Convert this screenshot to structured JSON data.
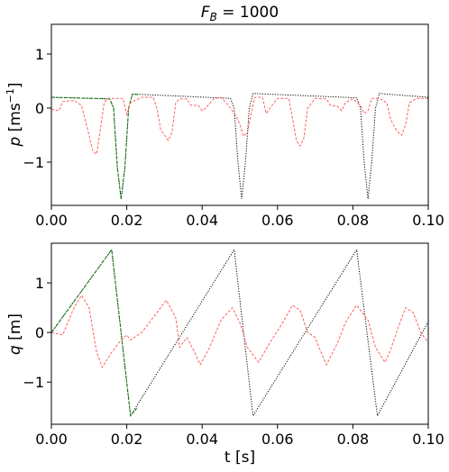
{
  "chart_data": [
    {
      "type": "line",
      "title": "F_B = 1000",
      "title_parts": {
        "main": "F",
        "sub": "B",
        "rest": " = 1000"
      },
      "ylabel_parts": {
        "var": "p",
        "unit_open": " [ms",
        "exp": "−1",
        "unit_close": "]"
      },
      "xlim": [
        0.0,
        0.1
      ],
      "ylim": [
        -1.8,
        1.55
      ],
      "xticks": [
        0.0,
        0.02,
        0.04,
        0.06,
        0.08,
        0.1
      ],
      "xtick_labels": [
        "0.00",
        "0.02",
        "0.04",
        "0.06",
        "0.08",
        "0.10"
      ],
      "yticks": [
        -1,
        0,
        1
      ],
      "ytick_labels": [
        "−1",
        "0",
        "1"
      ],
      "series": [
        {
          "color": "#000000",
          "style": "dotted",
          "points": [
            [
              0,
              0.2
            ],
            [
              0.0155,
              0.17
            ],
            [
              0.0165,
              0.0
            ],
            [
              0.0175,
              -1.1
            ],
            [
              0.0185,
              -1.68
            ],
            [
              0.0195,
              -1.1
            ],
            [
              0.0205,
              0.0
            ],
            [
              0.0215,
              0.26
            ],
            [
              0.0475,
              0.18
            ],
            [
              0.0485,
              0.0
            ],
            [
              0.0495,
              -1.0
            ],
            [
              0.0505,
              -1.68
            ],
            [
              0.0515,
              -1.0
            ],
            [
              0.0525,
              0.0
            ],
            [
              0.0535,
              0.27
            ],
            [
              0.081,
              0.19
            ],
            [
              0.082,
              0.0
            ],
            [
              0.083,
              -1.0
            ],
            [
              0.084,
              -1.68
            ],
            [
              0.085,
              -1.0
            ],
            [
              0.086,
              0.0
            ],
            [
              0.087,
              0.27
            ],
            [
              0.1,
              0.2
            ]
          ]
        },
        {
          "color": "#008000",
          "style": "dashed",
          "points": [
            [
              0,
              0.2
            ],
            [
              0.0155,
              0.17
            ],
            [
              0.0165,
              0.0
            ],
            [
              0.0175,
              -1.1
            ],
            [
              0.0185,
              -1.68
            ],
            [
              0.0195,
              -1.1
            ],
            [
              0.0205,
              0.0
            ],
            [
              0.0215,
              0.26
            ],
            [
              0.023,
              0.25
            ]
          ]
        },
        {
          "color": "#ff6060",
          "style": "dashed",
          "points": [
            [
              0,
              -0.02
            ],
            [
              0.002,
              -0.05
            ],
            [
              0.003,
              0.12
            ],
            [
              0.006,
              0.14
            ],
            [
              0.008,
              0.05
            ],
            [
              0.01,
              -0.5
            ],
            [
              0.011,
              -0.8
            ],
            [
              0.012,
              -0.85
            ],
            [
              0.013,
              -0.4
            ],
            [
              0.014,
              0.1
            ],
            [
              0.015,
              0.18
            ],
            [
              0.019,
              0.18
            ],
            [
              0.02,
              -0.12
            ],
            [
              0.021,
              0.1
            ],
            [
              0.024,
              0.2
            ],
            [
              0.027,
              0.2
            ],
            [
              0.028,
              0.0
            ],
            [
              0.029,
              -0.4
            ],
            [
              0.031,
              -0.6
            ],
            [
              0.032,
              -0.45
            ],
            [
              0.033,
              0.1
            ],
            [
              0.034,
              0.17
            ],
            [
              0.036,
              0.17
            ],
            [
              0.037,
              0.05
            ],
            [
              0.039,
              0.05
            ],
            [
              0.04,
              -0.05
            ],
            [
              0.041,
              0.0
            ],
            [
              0.043,
              0.17
            ],
            [
              0.045,
              0.2
            ],
            [
              0.047,
              0.05
            ],
            [
              0.049,
              -0.15
            ],
            [
              0.05,
              -0.3
            ],
            [
              0.051,
              -0.52
            ],
            [
              0.052,
              -0.45
            ],
            [
              0.053,
              -0.1
            ],
            [
              0.054,
              0.2
            ],
            [
              0.056,
              0.2
            ],
            [
              0.057,
              -0.1
            ],
            [
              0.058,
              0.0
            ],
            [
              0.06,
              0.18
            ],
            [
              0.063,
              0.18
            ],
            [
              0.064,
              -0.2
            ],
            [
              0.065,
              -0.6
            ],
            [
              0.066,
              -0.7
            ],
            [
              0.067,
              -0.55
            ],
            [
              0.068,
              0.0
            ],
            [
              0.07,
              0.18
            ],
            [
              0.073,
              0.17
            ],
            [
              0.074,
              0.05
            ],
            [
              0.076,
              0.03
            ],
            [
              0.077,
              -0.05
            ],
            [
              0.078,
              0.1
            ],
            [
              0.08,
              0.17
            ],
            [
              0.082,
              0.05
            ],
            [
              0.083,
              -0.1
            ],
            [
              0.084,
              -0.05
            ],
            [
              0.085,
              0.18
            ],
            [
              0.087,
              0.18
            ],
            [
              0.089,
              0.1
            ],
            [
              0.09,
              -0.2
            ],
            [
              0.091,
              -0.35
            ],
            [
              0.092,
              -0.45
            ],
            [
              0.093,
              -0.5
            ],
            [
              0.094,
              -0.3
            ],
            [
              0.095,
              0.1
            ],
            [
              0.097,
              0.18
            ],
            [
              0.1,
              0.18
            ]
          ]
        }
      ]
    },
    {
      "type": "line",
      "xlabel": "t [s]",
      "ylabel_parts": {
        "var": "q",
        "unit_open": " [m]",
        "exp": "",
        "unit_close": ""
      },
      "xlim": [
        0.0,
        0.1
      ],
      "ylim": [
        -1.85,
        1.8
      ],
      "xticks": [
        0.0,
        0.02,
        0.04,
        0.06,
        0.08,
        0.1
      ],
      "xtick_labels": [
        "0.00",
        "0.02",
        "0.04",
        "0.06",
        "0.08",
        "0.10"
      ],
      "yticks": [
        -1,
        0,
        1
      ],
      "ytick_labels": [
        "−1",
        "0",
        "1"
      ],
      "series": [
        {
          "color": "#000000",
          "style": "dotted",
          "points": [
            [
              0,
              0.0
            ],
            [
              0.016,
              1.67
            ],
            [
              0.021,
              -1.68
            ],
            [
              0.0485,
              1.67
            ],
            [
              0.0535,
              -1.68
            ],
            [
              0.081,
              1.67
            ],
            [
              0.0865,
              -1.68
            ],
            [
              0.1,
              0.22
            ]
          ]
        },
        {
          "color": "#008000",
          "style": "dashed",
          "points": [
            [
              0,
              0.0
            ],
            [
              0.016,
              1.67
            ],
            [
              0.021,
              -1.68
            ],
            [
              0.023,
              -1.5
            ]
          ]
        },
        {
          "color": "#ff6060",
          "style": "dashed",
          "points": [
            [
              0,
              0.0
            ],
            [
              0.003,
              -0.05
            ],
            [
              0.006,
              0.5
            ],
            [
              0.008,
              0.75
            ],
            [
              0.01,
              0.5
            ],
            [
              0.012,
              -0.4
            ],
            [
              0.0135,
              -0.7
            ],
            [
              0.016,
              -0.4
            ],
            [
              0.018,
              -0.2
            ],
            [
              0.02,
              -0.05
            ],
            [
              0.021,
              -0.15
            ],
            [
              0.024,
              0.0
            ],
            [
              0.026,
              0.2
            ],
            [
              0.029,
              0.5
            ],
            [
              0.0305,
              0.65
            ],
            [
              0.033,
              0.3
            ],
            [
              0.034,
              -0.3
            ],
            [
              0.036,
              -0.1
            ],
            [
              0.038,
              -0.4
            ],
            [
              0.0395,
              -0.65
            ],
            [
              0.042,
              -0.3
            ],
            [
              0.045,
              0.25
            ],
            [
              0.048,
              0.5
            ],
            [
              0.05,
              0.2
            ],
            [
              0.052,
              -0.3
            ],
            [
              0.055,
              -0.6
            ],
            [
              0.058,
              -0.2
            ],
            [
              0.061,
              0.15
            ],
            [
              0.064,
              0.55
            ],
            [
              0.066,
              0.45
            ],
            [
              0.068,
              0.0
            ],
            [
              0.07,
              -0.1
            ],
            [
              0.071,
              -0.3
            ],
            [
              0.073,
              -0.65
            ],
            [
              0.076,
              -0.2
            ],
            [
              0.078,
              0.2
            ],
            [
              0.081,
              0.55
            ],
            [
              0.084,
              0.25
            ],
            [
              0.086,
              -0.3
            ],
            [
              0.0885,
              -0.6
            ],
            [
              0.09,
              -0.35
            ],
            [
              0.092,
              0.1
            ],
            [
              0.094,
              0.5
            ],
            [
              0.096,
              0.4
            ],
            [
              0.098,
              0.0
            ],
            [
              0.1,
              -0.2
            ]
          ]
        }
      ]
    }
  ]
}
